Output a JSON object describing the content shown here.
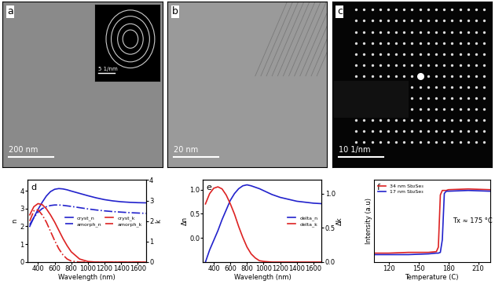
{
  "images": [
    {
      "label": "a",
      "scale_bar": "200 nm",
      "inset_scale_bar": "5 1/nm"
    },
    {
      "label": "b",
      "scale_bar": "20 nm"
    },
    {
      "label": "c",
      "scale_bar": "10 1/nm"
    }
  ],
  "chart_data": [
    {
      "type": "line",
      "label": "d",
      "x_label": "Wavelength (nm)",
      "y_label": "n",
      "y2_label": "k",
      "xlim": [
        270,
        1700
      ],
      "xticks": [
        400,
        600,
        800,
        1000,
        1200,
        1400,
        1600
      ],
      "ylim": [
        0,
        4.6
      ],
      "yticks": [
        0,
        1,
        2,
        3,
        4
      ],
      "y2lim": [
        0,
        4
      ],
      "y2ticks": [
        0,
        1,
        2,
        3,
        4
      ],
      "legend": "center right",
      "x": [
        300,
        350,
        400,
        450,
        500,
        550,
        600,
        650,
        700,
        750,
        800,
        900,
        1000,
        1100,
        1200,
        1300,
        1400,
        1500,
        1600,
        1700
      ],
      "series": [
        {
          "name": "cryst_n",
          "color": "#2222cc",
          "line_style": "solid",
          "values": [
            2.0,
            2.5,
            2.95,
            3.35,
            3.7,
            3.95,
            4.08,
            4.12,
            4.1,
            4.05,
            3.98,
            3.85,
            3.72,
            3.6,
            3.5,
            3.43,
            3.38,
            3.35,
            3.33,
            3.32
          ]
        },
        {
          "name": "amorph_n",
          "color": "#2222cc",
          "line_style": "dashdot",
          "values": [
            2.1,
            2.5,
            2.8,
            3.0,
            3.1,
            3.17,
            3.2,
            3.2,
            3.18,
            3.15,
            3.12,
            3.05,
            2.98,
            2.92,
            2.87,
            2.83,
            2.8,
            2.77,
            2.75,
            2.73
          ]
        },
        {
          "name": "cryst_k",
          "color": "#dd2222",
          "line_style": "solid",
          "axis": "y2",
          "values": [
            2.3,
            2.7,
            2.85,
            2.8,
            2.6,
            2.3,
            1.95,
            1.55,
            1.15,
            0.8,
            0.5,
            0.15,
            0.03,
            0.0,
            0.0,
            0.0,
            0.0,
            0.0,
            0.0,
            0.0
          ]
        },
        {
          "name": "amorph_k",
          "color": "#dd2222",
          "line_style": "dashdot",
          "axis": "y2",
          "values": [
            2.0,
            2.5,
            2.55,
            2.3,
            1.95,
            1.5,
            1.05,
            0.65,
            0.35,
            0.15,
            0.05,
            0.0,
            0.0,
            0.0,
            0.0,
            0.0,
            0.0,
            0.0,
            0.0,
            0.0
          ]
        }
      ]
    },
    {
      "type": "line",
      "label": "e",
      "x_label": "Wavelength (nm)",
      "y_label": "Δn",
      "y2_label": "Δk",
      "xlim": [
        270,
        1700
      ],
      "xticks": [
        400,
        600,
        800,
        1000,
        1200,
        1400,
        1600
      ],
      "ylim": [
        -0.5,
        1.2
      ],
      "yticks": [
        {
          "value": 0,
          "label": "0.0"
        },
        0.5,
        {
          "value": 1,
          "label": "1.0"
        }
      ],
      "y2lim": [
        0,
        1.2
      ],
      "y2ticks": [
        {
          "value": 0,
          "label": "0.0"
        },
        0.5,
        {
          "value": 1,
          "label": "1.0"
        }
      ],
      "legend": "center right",
      "x": [
        300,
        350,
        400,
        450,
        500,
        550,
        600,
        650,
        700,
        750,
        800,
        850,
        900,
        950,
        1000,
        1100,
        1200,
        1300,
        1400,
        1500,
        1600,
        1700
      ],
      "series": [
        {
          "name": "delta_n",
          "color": "#2222cc",
          "line_style": "solid",
          "values": [
            -0.5,
            -0.25,
            -0.05,
            0.15,
            0.38,
            0.58,
            0.78,
            0.92,
            1.02,
            1.08,
            1.1,
            1.08,
            1.05,
            1.02,
            0.98,
            0.9,
            0.84,
            0.8,
            0.76,
            0.74,
            0.72,
            0.71
          ]
        },
        {
          "name": "delta_k",
          "color": "#dd2222",
          "line_style": "solid",
          "axis": "y2",
          "values": [
            0.85,
            1.0,
            1.08,
            1.1,
            1.07,
            0.98,
            0.85,
            0.7,
            0.52,
            0.36,
            0.22,
            0.12,
            0.06,
            0.02,
            0.01,
            0.0,
            0.0,
            0.0,
            0.0,
            0.0,
            0.0,
            0.0
          ]
        }
      ]
    },
    {
      "type": "line",
      "label": "f",
      "x_label": "Temperature (C)",
      "y_label": "Intensity (a.u)",
      "xlim": [
        105,
        222
      ],
      "xticks": [
        120,
        150,
        180,
        210
      ],
      "ylim": [
        0,
        1.1
      ],
      "tick_labels": "x",
      "legend": "upper left",
      "annotation": "Tx ≈ 175 °C",
      "x": [
        105,
        120,
        140,
        160,
        168,
        170,
        172,
        174,
        176,
        178,
        180,
        200,
        222
      ],
      "series": [
        {
          "name": "34 nm Sb₂Se₃",
          "color": "#dd2222",
          "line_style": "solid",
          "values": [
            0.12,
            0.12,
            0.13,
            0.13,
            0.14,
            0.2,
            0.9,
            0.96,
            0.96,
            0.96,
            0.97,
            0.98,
            0.97
          ]
        },
        {
          "name": "17 nm Sb₂Se₃",
          "color": "#2222cc",
          "line_style": "solid",
          "values": [
            0.1,
            0.1,
            0.1,
            0.11,
            0.12,
            0.12,
            0.13,
            0.3,
            0.92,
            0.95,
            0.95,
            0.96,
            0.95
          ]
        }
      ]
    }
  ]
}
